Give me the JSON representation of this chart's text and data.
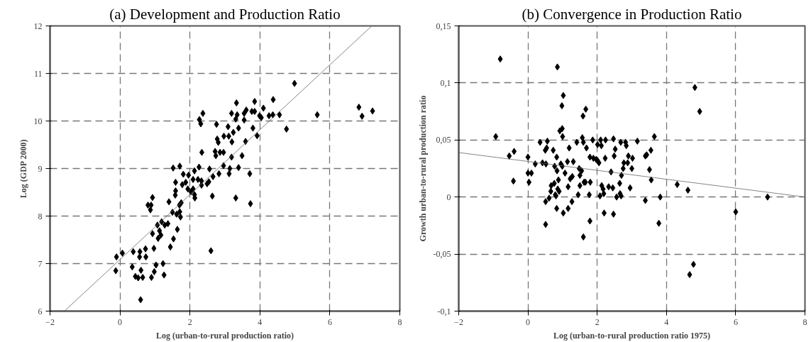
{
  "chart_data": [
    {
      "type": "scatter",
      "title": "(a) Development and Production Ratio",
      "xlabel": "Log (urban-to-rural production ratio)",
      "ylabel": "Log (GDP 2000)",
      "xlim": [
        -2,
        8
      ],
      "ylim": [
        6,
        12
      ],
      "xticks": [
        -2,
        0,
        2,
        4,
        6,
        8
      ],
      "yticks": [
        6,
        7,
        8,
        9,
        10,
        11,
        12
      ],
      "grid": true,
      "series": [
        {
          "marker": "diamond",
          "color": "#000000",
          "x": [
            -0.1,
            0.07,
            -0.12,
            0.38,
            0.35,
            0.57,
            0.73,
            0.74,
            0.56,
            0.6,
            0.44,
            0.52,
            0.65,
            0.59,
            0.9,
            0.98,
            1.03,
            1.23,
            1.26,
            0.97,
            0.93,
            1.07,
            1.13,
            1.17,
            1.09,
            1.19,
            1.28,
            1.37,
            1.44,
            1.53,
            1.64,
            0.8,
            0.89,
            0.87,
            0.93,
            1.4,
            1.5,
            1.62,
            1.71,
            1.73,
            1.7,
            1.75,
            1.58,
            1.59,
            1.59,
            1.52,
            1.71,
            1.81,
            1.78,
            1.88,
            1.96,
            1.94,
            2.03,
            2.09,
            2.14,
            2.13,
            2.09,
            2.13,
            2.26,
            2.23,
            2.33,
            2.33,
            2.49,
            2.54,
            2.56,
            2.66,
            2.64,
            2.83,
            2.6,
            2.34,
            2.27,
            2.31,
            2.37,
            2.76,
            2.78,
            2.81,
            2.72,
            2.74,
            2.86,
            2.96,
            2.97,
            3.09,
            3.11,
            3.24,
            3.2,
            3.39,
            3.19,
            2.96,
            3.14,
            3.12,
            3.39,
            3.49,
            3.71,
            3.31,
            3.73,
            3.59,
            3.92,
            3.8,
            3.19,
            3.33,
            3.35,
            3.31,
            3.55,
            3.55,
            3.61,
            3.77,
            3.85,
            3.85,
            3.99,
            4.04,
            4.1,
            4.26,
            4.38,
            4.37,
            4.56,
            4.76,
            4.99,
            5.64,
            6.83,
            6.92,
            7.22
          ],
          "values": [
            7.14,
            7.22,
            6.85,
            7.25,
            6.93,
            7.25,
            7.31,
            7.14,
            7.14,
            6.86,
            6.73,
            6.7,
            6.71,
            6.24,
            6.71,
            6.83,
            6.97,
            7.0,
            6.76,
            7.32,
            7.63,
            7.81,
            7.69,
            7.6,
            7.53,
            7.88,
            7.81,
            7.84,
            7.35,
            7.52,
            7.72,
            8.23,
            8.23,
            8.13,
            8.39,
            8.3,
            8.08,
            8.04,
            8.09,
            7.98,
            8.23,
            8.28,
            8.44,
            8.53,
            8.71,
            9.01,
            9.05,
            8.88,
            8.66,
            8.71,
            8.86,
            8.57,
            8.51,
            8.57,
            8.38,
            8.45,
            8.77,
            8.95,
            9.03,
            8.77,
            8.74,
            8.65,
            8.68,
            8.72,
            8.99,
            8.83,
            8.42,
            8.89,
            7.27,
            9.34,
            10.03,
            9.94,
            10.16,
            9.93,
            9.62,
            9.55,
            9.36,
            9.27,
            9.34,
            9.34,
            9.68,
            9.88,
            9.68,
            9.76,
            9.56,
            9.85,
            9.24,
            9.06,
            9.0,
            8.89,
            9.02,
            9.27,
            8.89,
            8.38,
            8.26,
            9.57,
            9.69,
            9.85,
            10.16,
            10.38,
            10.13,
            10.04,
            10.02,
            10.16,
            10.23,
            10.2,
            10.41,
            10.2,
            10.11,
            10.07,
            10.27,
            10.11,
            10.45,
            10.13,
            10.13,
            9.83,
            10.79,
            10.13,
            10.29,
            10.1,
            10.21
          ]
        },
        {
          "type": "line",
          "color": "#666666",
          "line_style": "solid",
          "x": [
            -1.59,
            7.2
          ],
          "values": [
            6,
            12
          ]
        }
      ]
    },
    {
      "type": "scatter",
      "title": "(b) Convergence in Production Ratio",
      "xlabel": "Log (urban-to-rural production ratio 1975)",
      "ylabel": "Growth urban-to-rural production ratio",
      "xlim": [
        -2,
        8
      ],
      "ylim": [
        -0.1,
        0.15
      ],
      "xticks": [
        -2,
        0,
        2,
        4,
        6,
        8
      ],
      "yticks": [
        {
          "value": -0.1,
          "label": "-0,1"
        },
        {
          "value": -0.05,
          "label": "-0,05"
        },
        0,
        {
          "value": 0.05,
          "label": "0,05"
        },
        {
          "value": 0.1,
          "label": "0,1"
        },
        {
          "value": 0.15,
          "label": "0,15"
        }
      ],
      "grid": true,
      "series": [
        {
          "marker": "diamond",
          "color": "#000000",
          "x": [
            -0.8,
            -0.93,
            -0.54,
            -0.4,
            -0.42,
            0.0,
            0.0,
            0.1,
            0.03,
            0.21,
            0.35,
            0.42,
            0.52,
            0.56,
            0.54,
            0.5,
            0.51,
            0.61,
            0.51,
            0.66,
            0.67,
            0.73,
            0.76,
            0.77,
            0.79,
            0.81,
            0.83,
            0.84,
            0.86,
            0.88,
            0.9,
            0.85,
            0.92,
            0.99,
            1.0,
            0.98,
            1.02,
            0.95,
            0.99,
            0.83,
            1.02,
            1.07,
            1.14,
            1.16,
            1.19,
            1.16,
            1.22,
            1.28,
            1.27,
            1.31,
            1.41,
            1.45,
            1.48,
            1.5,
            1.5,
            1.55,
            1.57,
            1.6,
            1.59,
            1.67,
            1.69,
            1.62,
            1.66,
            1.6,
            1.77,
            1.8,
            1.79,
            1.79,
            1.87,
            1.89,
            1.97,
            2.01,
            2.05,
            2.01,
            2.1,
            2.12,
            2.08,
            2.13,
            2.17,
            2.19,
            2.2,
            2.24,
            2.23,
            2.33,
            2.4,
            2.45,
            2.47,
            2.49,
            2.52,
            2.47,
            2.56,
            2.65,
            2.66,
            2.69,
            2.7,
            2.75,
            2.77,
            2.68,
            2.82,
            2.84,
            2.88,
            2.9,
            2.95,
            3.0,
            3.02,
            3.16,
            3.39,
            3.39,
            3.43,
            3.51,
            3.55,
            3.56,
            3.65,
            3.78,
            3.82,
            4.31,
            4.62,
            4.82,
            4.96,
            4.67,
            4.78,
            6.0,
            6.92
          ],
          "values": [
            0.121,
            0.053,
            0.036,
            0.04,
            0.014,
            0.035,
            0.021,
            0.021,
            0.013,
            0.029,
            0.048,
            0.03,
            0.029,
            0.049,
            0.043,
            0.041,
            -0.004,
            -0.001,
            -0.024,
            0.005,
            0.01,
            0.041,
            0.012,
            0.027,
            0.002,
            0.001,
            0.035,
            0.023,
            0.007,
            0.015,
            0.005,
            0.114,
            0.058,
            0.06,
            0.053,
            0.08,
            0.089,
            0.029,
            0.027,
            -0.01,
            -0.014,
            0.021,
            0.031,
            0.009,
            0.043,
            -0.01,
            0.016,
            0.018,
            -0.004,
            0.031,
            0.048,
            0.002,
            0.025,
            0.019,
            0.01,
            0.023,
            0.052,
            0.048,
            0.071,
            0.077,
            0.043,
            0.013,
            0.013,
            -0.035,
            0.002,
            0.013,
            -0.021,
            0.035,
            0.05,
            0.034,
            0.033,
            0.032,
            0.03,
            0.046,
            0.05,
            0.045,
            0.001,
            0.01,
            0.007,
            0.003,
            -0.014,
            0.05,
            0.034,
            0.009,
            0.022,
            0.008,
            0.051,
            0.036,
            0.042,
            -0.015,
            0.0,
            0.012,
            0.003,
            0.001,
            0.019,
            0.025,
            0.03,
            0.048,
            0.048,
            0.045,
            0.03,
            0.036,
            0.008,
            0.025,
            0.034,
            0.049,
            -0.003,
            0.036,
            0.037,
            0.024,
            0.041,
            0.015,
            0.053,
            -0.023,
            0.0,
            0.011,
            0.006,
            0.096,
            0.075,
            -0.068,
            -0.059,
            -0.013,
            0.0
          ]
        },
        {
          "type": "line",
          "color": "#666666",
          "line_style": "solid",
          "x": [
            -2,
            8
          ],
          "values": [
            0.039,
            0
          ]
        }
      ]
    }
  ]
}
